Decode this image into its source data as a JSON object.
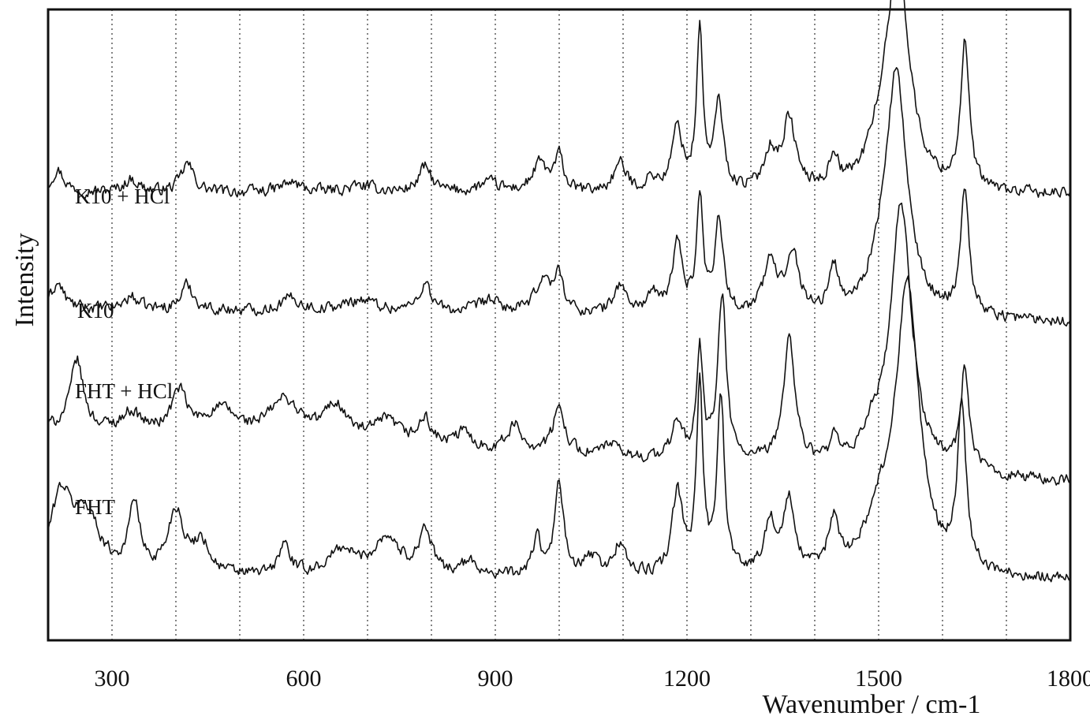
{
  "chart_data": {
    "type": "line",
    "xlabel": "Wavenumber / cm-1",
    "ylabel": "Intensity",
    "xlim": [
      200,
      1800
    ],
    "x_ticks": [
      300,
      600,
      900,
      1200,
      1500,
      1800
    ],
    "x_tick_labels": [
      "300",
      "600",
      "900",
      "1200",
      "1500",
      "1800"
    ],
    "vertical_grid": [
      300,
      400,
      500,
      600,
      700,
      800,
      900,
      1000,
      1100,
      1200,
      1300,
      1400,
      1500,
      1600,
      1700
    ],
    "grid": "vertical dotted",
    "ylim": [
      0,
      10
    ],
    "y_ticks": "none",
    "series": [
      {
        "name": "K10 + HCl",
        "baseline": 7.1,
        "peaks": [
          [
            215,
            0.35,
            12
          ],
          [
            330,
            0.2,
            14
          ],
          [
            418,
            0.45,
            12
          ],
          [
            580,
            0.15,
            20
          ],
          [
            690,
            0.1,
            30
          ],
          [
            790,
            0.4,
            12
          ],
          [
            890,
            0.15,
            20
          ],
          [
            970,
            0.45,
            14
          ],
          [
            1000,
            0.55,
            8
          ],
          [
            1095,
            0.45,
            12
          ],
          [
            1145,
            0.2,
            10
          ],
          [
            1185,
            1.0,
            10
          ],
          [
            1220,
            2.5,
            6
          ],
          [
            1250,
            1.4,
            8
          ],
          [
            1330,
            0.6,
            12
          ],
          [
            1360,
            1.1,
            12
          ],
          [
            1430,
            0.5,
            8
          ],
          [
            1500,
            0.4,
            20
          ],
          [
            1530,
            3.6,
            22
          ],
          [
            1635,
            2.3,
            8
          ]
        ],
        "tail": 7.05
      },
      {
        "name": "K10",
        "baseline": 5.25,
        "peaks": [
          [
            215,
            0.4,
            12
          ],
          [
            330,
            0.2,
            14
          ],
          [
            418,
            0.4,
            12
          ],
          [
            580,
            0.2,
            20
          ],
          [
            690,
            0.2,
            30
          ],
          [
            790,
            0.45,
            12
          ],
          [
            890,
            0.2,
            20
          ],
          [
            975,
            0.55,
            14
          ],
          [
            1000,
            0.6,
            8
          ],
          [
            1095,
            0.45,
            12
          ],
          [
            1145,
            0.3,
            10
          ],
          [
            1185,
            1.1,
            10
          ],
          [
            1220,
            1.8,
            6
          ],
          [
            1250,
            1.5,
            8
          ],
          [
            1330,
            0.8,
            12
          ],
          [
            1365,
            1.0,
            12
          ],
          [
            1430,
            0.7,
            8
          ],
          [
            1500,
            0.4,
            20
          ],
          [
            1528,
            3.8,
            20
          ],
          [
            1635,
            2.0,
            8
          ]
        ],
        "tail": 5.05
      },
      {
        "name": "FHT + HCl",
        "baseline": 3.35,
        "peaks": [
          [
            245,
            1.1,
            12
          ],
          [
            330,
            0.3,
            18
          ],
          [
            405,
            0.65,
            14
          ],
          [
            470,
            0.4,
            30
          ],
          [
            570,
            0.6,
            30
          ],
          [
            650,
            0.55,
            22
          ],
          [
            730,
            0.35,
            25
          ],
          [
            790,
            0.4,
            12
          ],
          [
            850,
            0.25,
            15
          ],
          [
            930,
            0.4,
            14
          ],
          [
            1000,
            0.7,
            12
          ],
          [
            1080,
            0.2,
            12
          ],
          [
            1185,
            0.6,
            10
          ],
          [
            1220,
            1.7,
            6
          ],
          [
            1255,
            2.6,
            8
          ],
          [
            1360,
            2.0,
            11
          ],
          [
            1430,
            0.35,
            8
          ],
          [
            1490,
            0.45,
            15
          ],
          [
            1535,
            4.2,
            20
          ],
          [
            1635,
            1.6,
            8
          ]
        ],
        "tail": 2.5
      },
      {
        "name": "FHT",
        "baseline": 1.0,
        "peaks": [
          [
            220,
            1.2,
            20
          ],
          [
            260,
            0.9,
            25
          ],
          [
            335,
            1.1,
            10
          ],
          [
            400,
            1.0,
            15
          ],
          [
            440,
            0.5,
            15
          ],
          [
            570,
            0.5,
            10
          ],
          [
            660,
            0.4,
            25
          ],
          [
            730,
            0.6,
            25
          ],
          [
            790,
            0.7,
            12
          ],
          [
            860,
            0.2,
            20
          ],
          [
            965,
            0.6,
            8
          ],
          [
            1000,
            1.5,
            8
          ],
          [
            1050,
            0.3,
            12
          ],
          [
            1095,
            0.5,
            12
          ],
          [
            1185,
            1.3,
            10
          ],
          [
            1220,
            3.0,
            6
          ],
          [
            1253,
            2.8,
            7
          ],
          [
            1330,
            0.8,
            12
          ],
          [
            1360,
            1.1,
            10
          ],
          [
            1430,
            0.8,
            10
          ],
          [
            1500,
            0.7,
            25
          ],
          [
            1545,
            4.6,
            22
          ],
          [
            1630,
            2.6,
            8
          ]
        ],
        "tail": 0.95
      }
    ],
    "series_labels": [
      "K10 + HCl",
      "K10",
      "FHT + HCl",
      "FHT"
    ]
  }
}
